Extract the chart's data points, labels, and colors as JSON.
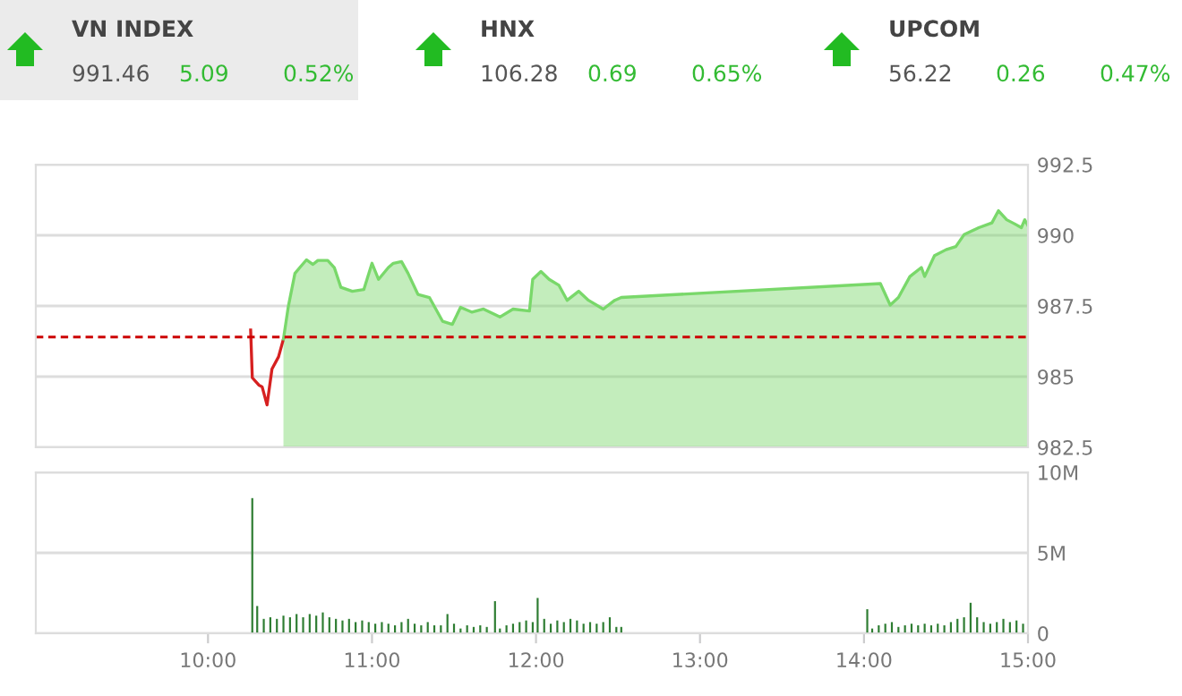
{
  "chart_data": [
    {
      "type": "other",
      "annotations": [
        "VN INDEX",
        "991.46",
        "5.09",
        "0.52%",
        "HNX",
        "106.28",
        "0.69",
        "0.65%",
        "UPCOM",
        "56.22",
        "0.26",
        "0.47%"
      ]
    },
    {
      "type": "area",
      "series": [
        {
          "type": "line",
          "color": "#d62020",
          "x": [
            10.26,
            10.27,
            10.31,
            10.33,
            10.36,
            10.39,
            10.43,
            10.46
          ],
          "values": [
            986.65,
            984.96,
            984.7,
            984.64,
            984.0,
            985.27,
            985.7,
            986.33
          ]
        },
        {
          "type": "area",
          "color": "#79d86a",
          "x": [
            10.46,
            10.49,
            10.53,
            10.56,
            10.6,
            10.64,
            10.67,
            10.73,
            10.77,
            10.81,
            10.88,
            10.95,
            11.0,
            11.04,
            11.1,
            11.13,
            11.18,
            11.22,
            11.28,
            11.35,
            11.43,
            11.49,
            11.54,
            11.61,
            11.68,
            11.78,
            11.86,
            11.96,
            11.98,
            12.03,
            12.08,
            12.14,
            12.19,
            12.26,
            12.32,
            12.41,
            12.48,
            12.52,
            14.1,
            14.16,
            14.21,
            14.28,
            14.35,
            14.37,
            14.43,
            14.5,
            14.56,
            14.61,
            14.7,
            14.78,
            14.82,
            14.87,
            14.92,
            14.96,
            14.98,
            15.0
          ],
          "values": [
            986.33,
            987.49,
            988.65,
            988.86,
            989.13,
            988.97,
            989.11,
            989.11,
            988.86,
            988.16,
            988.02,
            988.08,
            989.01,
            988.44,
            988.86,
            989.01,
            989.07,
            988.65,
            987.91,
            987.8,
            986.96,
            986.85,
            987.45,
            987.28,
            987.39,
            987.11,
            987.39,
            987.32,
            988.44,
            988.72,
            988.44,
            988.23,
            987.7,
            988.02,
            987.7,
            987.39,
            987.7,
            987.8,
            988.29,
            987.53,
            987.8,
            988.54,
            988.86,
            988.54,
            989.28,
            989.49,
            989.6,
            990.02,
            990.27,
            990.44,
            990.87,
            990.55,
            990.4,
            990.27,
            990.55,
            990.34
          ]
        }
      ],
      "xlim": [
        8.95,
        15.0
      ],
      "ylim": [
        982.5,
        992.5
      ],
      "yticks": [
        982.5,
        985,
        987.5,
        990,
        992.5
      ],
      "tick_labels": "y",
      "grid": "y",
      "ref_lines": [
        {
          "axis": "y",
          "value": 986.4,
          "color": "#cc0000",
          "line_style": "dashed"
        }
      ]
    },
    {
      "type": "bar",
      "color": "#2e7d32",
      "x": [
        10.27,
        10.3,
        10.34,
        10.38,
        10.42,
        10.46,
        10.5,
        10.54,
        10.58,
        10.62,
        10.66,
        10.7,
        10.74,
        10.78,
        10.82,
        10.86,
        10.9,
        10.94,
        10.98,
        11.02,
        11.06,
        11.1,
        11.14,
        11.18,
        11.22,
        11.26,
        11.3,
        11.34,
        11.38,
        11.42,
        11.46,
        11.5,
        11.54,
        11.58,
        11.62,
        11.66,
        11.7,
        11.75,
        11.78,
        11.82,
        11.86,
        11.9,
        11.94,
        11.98,
        12.01,
        12.05,
        12.09,
        12.13,
        12.17,
        12.21,
        12.25,
        12.29,
        12.33,
        12.37,
        12.41,
        12.45,
        12.49,
        12.52,
        14.02,
        14.05,
        14.09,
        14.13,
        14.17,
        14.21,
        14.25,
        14.29,
        14.33,
        14.37,
        14.41,
        14.45,
        14.49,
        14.53,
        14.57,
        14.61,
        14.65,
        14.69,
        14.73,
        14.77,
        14.81,
        14.85,
        14.89,
        14.93,
        14.97
      ],
      "values": [
        8.4,
        1.7,
        0.9,
        1.0,
        0.9,
        1.1,
        1.0,
        1.2,
        1.0,
        1.2,
        1.1,
        1.3,
        1.0,
        0.9,
        0.8,
        0.9,
        0.7,
        0.8,
        0.7,
        0.6,
        0.7,
        0.6,
        0.5,
        0.7,
        0.9,
        0.6,
        0.5,
        0.7,
        0.5,
        0.5,
        1.2,
        0.6,
        0.3,
        0.5,
        0.4,
        0.5,
        0.4,
        2.0,
        0.3,
        0.5,
        0.6,
        0.7,
        0.8,
        0.7,
        2.2,
        0.9,
        0.6,
        0.8,
        0.7,
        0.9,
        0.8,
        0.6,
        0.7,
        0.6,
        0.7,
        1.0,
        0.4,
        0.4,
        1.5,
        0.3,
        0.5,
        0.6,
        0.7,
        0.4,
        0.5,
        0.6,
        0.5,
        0.6,
        0.5,
        0.6,
        0.5,
        0.7,
        0.9,
        1.0,
        1.9,
        1.0,
        0.7,
        0.6,
        0.7,
        0.9,
        0.7,
        0.8,
        0.6
      ],
      "xlim": [
        8.95,
        15.0
      ],
      "ylim": [
        0,
        10
      ],
      "yticks": [
        0,
        {
          "value": 5,
          "label": "5M"
        },
        {
          "value": 10,
          "label": "10M"
        }
      ],
      "xticks": [
        {
          "value": 10,
          "label": "10:00"
        },
        {
          "value": 11,
          "label": "11:00"
        },
        {
          "value": 12,
          "label": "12:00"
        },
        {
          "value": 13,
          "label": "13:00"
        },
        {
          "value": 14,
          "label": "14:00"
        },
        {
          "value": 15,
          "label": "15:00"
        }
      ],
      "grid": "y"
    }
  ]
}
